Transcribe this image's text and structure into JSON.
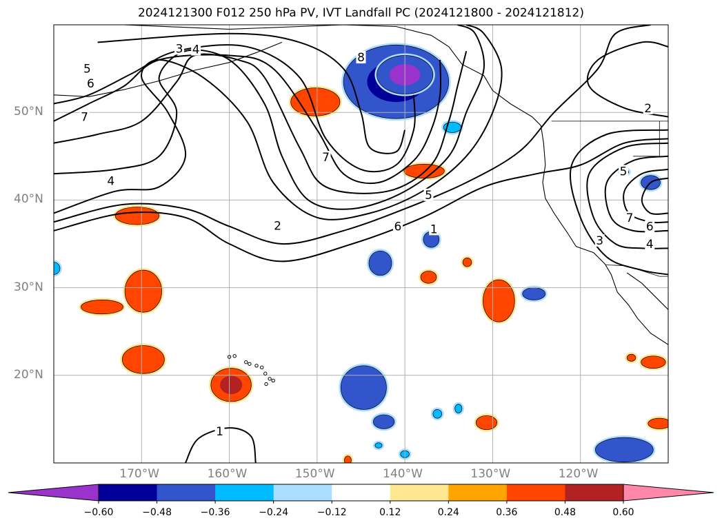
{
  "title": "2024121300 F012 250 hPa PV, IVT Landfall PC (2024121800 - 2024121812)",
  "map": {
    "lon_range": [
      -180,
      -110
    ],
    "lat_range": [
      10,
      60
    ],
    "lat_labels": [
      {
        "lat": 50,
        "text": "50°N"
      },
      {
        "lat": 40,
        "text": "40°N"
      },
      {
        "lat": 30,
        "text": "30°N"
      },
      {
        "lat": 20,
        "text": "20°N"
      }
    ],
    "lon_labels": [
      {
        "lon": -170,
        "text": "170°W"
      },
      {
        "lon": -160,
        "text": "160°W"
      },
      {
        "lon": -150,
        "text": "150°W"
      },
      {
        "lon": -140,
        "text": "140°W"
      },
      {
        "lon": -130,
        "text": "130°W"
      },
      {
        "lon": -120,
        "text": "120°W"
      }
    ],
    "gridlines": true,
    "contour_labels": [
      {
        "lon": -165.7,
        "lat": 57.3,
        "text": "3"
      },
      {
        "lon": -163.8,
        "lat": 57.2,
        "text": "4"
      },
      {
        "lon": -176.2,
        "lat": 55.0,
        "text": "5"
      },
      {
        "lon": -175.8,
        "lat": 53.3,
        "text": "6"
      },
      {
        "lon": -176.5,
        "lat": 49.5,
        "text": "7"
      },
      {
        "lon": -173.5,
        "lat": 42.2,
        "text": "4"
      },
      {
        "lon": -154.5,
        "lat": 37.1,
        "text": "2"
      },
      {
        "lon": -149.0,
        "lat": 44.9,
        "text": "7"
      },
      {
        "lon": -145.0,
        "lat": 56.3,
        "text": "8"
      },
      {
        "lon": -137.3,
        "lat": 40.6,
        "text": "5"
      },
      {
        "lon": -140.8,
        "lat": 37.0,
        "text": "6"
      },
      {
        "lon": -136.7,
        "lat": 36.7,
        "text": "1"
      },
      {
        "lon": -161.1,
        "lat": 13.6,
        "text": "1"
      },
      {
        "lon": -112.3,
        "lat": 50.5,
        "text": "2"
      },
      {
        "lon": -115.1,
        "lat": 43.3,
        "text": "5"
      },
      {
        "lon": -114.4,
        "lat": 38.0,
        "text": "7"
      },
      {
        "lon": -112.1,
        "lat": 37.0,
        "text": "6"
      },
      {
        "lon": -112.1,
        "lat": 35.0,
        "text": "4"
      },
      {
        "lon": -117.8,
        "lat": 35.4,
        "text": "3"
      }
    ]
  },
  "pv_contours": [
    {
      "level": "1",
      "points": [
        [
          -180,
          36.5
        ],
        [
          -172,
          38.5
        ],
        [
          -165,
          38
        ],
        [
          -160,
          35
        ],
        [
          -154,
          33
        ],
        [
          -146,
          35
        ],
        [
          -138,
          38
        ],
        [
          -131,
          41.5
        ],
        [
          -125,
          43
        ],
        [
          -120,
          44
        ],
        [
          -115,
          46.5
        ],
        [
          -110,
          47
        ]
      ]
    },
    {
      "level": "2",
      "points": [
        [
          -180,
          37.5
        ],
        [
          -172,
          39.5
        ],
        [
          -165,
          39
        ],
        [
          -160,
          37
        ],
        [
          -154,
          35
        ],
        [
          -147,
          36.5
        ],
        [
          -140,
          39
        ],
        [
          -133,
          42
        ],
        [
          -127,
          45.5
        ],
        [
          -123,
          50
        ],
        [
          -118,
          55
        ],
        [
          -116,
          59
        ],
        [
          -112,
          60
        ]
      ]
    },
    {
      "level": "3",
      "points": [
        [
          -180,
          38.5
        ],
        [
          -173,
          41
        ],
        [
          -168,
          41.5
        ],
        [
          -165,
          45
        ],
        [
          -167,
          50
        ],
        [
          -170,
          54
        ],
        [
          -168,
          56
        ],
        [
          -163,
          54
        ],
        [
          -158,
          49
        ],
        [
          -155,
          42
        ],
        [
          -150,
          38
        ],
        [
          -144,
          38.5
        ],
        [
          -138,
          41
        ],
        [
          -133,
          45
        ],
        [
          -130,
          50
        ],
        [
          -129,
          55
        ],
        [
          -131,
          59
        ],
        [
          -133,
          60
        ]
      ]
    },
    {
      "level": "4",
      "points": [
        [
          -180,
          43
        ],
        [
          -173,
          43.5
        ],
        [
          -168,
          45
        ],
        [
          -166,
          50
        ],
        [
          -168,
          54
        ],
        [
          -165,
          57
        ],
        [
          -160,
          56
        ],
        [
          -156,
          51
        ],
        [
          -154,
          45
        ],
        [
          -151,
          40
        ],
        [
          -146,
          39
        ],
        [
          -140,
          41
        ],
        [
          -135,
          45
        ],
        [
          -133,
          50
        ],
        [
          -131,
          55
        ],
        [
          -132,
          59
        ],
        [
          -134,
          60
        ]
      ]
    },
    {
      "level": "5",
      "points": [
        [
          -180,
          46.5
        ],
        [
          -175,
          47.5
        ],
        [
          -170,
          49
        ],
        [
          -166,
          53.5
        ],
        [
          -164,
          56.5
        ],
        [
          -159,
          56
        ],
        [
          -156,
          54
        ],
        [
          -152,
          46
        ],
        [
          -149,
          41.5
        ],
        [
          -142,
          41
        ],
        [
          -137,
          44
        ],
        [
          -135,
          49
        ],
        [
          -134,
          53
        ],
        [
          -133,
          57
        ]
      ]
    },
    {
      "level": "6",
      "points": [
        [
          -180,
          49
        ],
        [
          -176,
          51
        ],
        [
          -172,
          53
        ],
        [
          -168,
          56
        ],
        [
          -160,
          56.5
        ],
        [
          -155,
          55
        ],
        [
          -150,
          48
        ],
        [
          -147,
          43
        ],
        [
          -143,
          42
        ],
        [
          -139,
          44.5
        ],
        [
          -137,
          48
        ],
        [
          -136,
          52
        ],
        [
          -136,
          56
        ]
      ]
    },
    {
      "level": "7",
      "points": [
        [
          -180,
          51
        ],
        [
          -176,
          52
        ],
        [
          -171,
          54.5
        ],
        [
          -166,
          57
        ],
        [
          -158,
          57.5
        ],
        [
          -152,
          54
        ],
        [
          -149,
          47
        ],
        [
          -145,
          43.5
        ],
        [
          -141,
          44
        ],
        [
          -139,
          48
        ],
        [
          -139,
          52
        ]
      ]
    },
    {
      "level": "8",
      "points": [
        [
          -175,
          58
        ],
        [
          -160,
          59
        ],
        [
          -152,
          58
        ],
        [
          -147,
          55
        ],
        [
          -145,
          50
        ],
        [
          -144,
          46
        ],
        [
          -141,
          45.5
        ],
        [
          -140,
          48
        ]
      ]
    },
    {
      "level": "2",
      "points": [
        [
          -110,
          57.5
        ],
        [
          -113,
          58
        ],
        [
          -118,
          56
        ],
        [
          -119,
          53
        ],
        [
          -115,
          50.5
        ],
        [
          -110,
          49.5
        ]
      ]
    },
    {
      "level": "3",
      "points": [
        [
          -110,
          48
        ],
        [
          -117,
          47.5
        ],
        [
          -121,
          44
        ],
        [
          -120,
          38
        ],
        [
          -117,
          33.5
        ],
        [
          -113,
          32
        ],
        [
          -110,
          31.5
        ]
      ]
    },
    {
      "level": "4",
      "points": [
        [
          -110,
          46.5
        ],
        [
          -115,
          46
        ],
        [
          -119,
          43
        ],
        [
          -118.5,
          38
        ],
        [
          -116,
          35
        ],
        [
          -113,
          34.5
        ],
        [
          -110,
          34.5
        ]
      ]
    },
    {
      "level": "5",
      "points": [
        [
          -110,
          45
        ],
        [
          -114,
          44.5
        ],
        [
          -117,
          42
        ],
        [
          -116.5,
          38
        ],
        [
          -114,
          36.5
        ],
        [
          -110,
          36.5
        ]
      ]
    },
    {
      "level": "6",
      "points": [
        [
          -110,
          43.5
        ],
        [
          -113,
          43
        ],
        [
          -115,
          41
        ],
        [
          -114.5,
          38.5
        ],
        [
          -112,
          37.5
        ],
        [
          -110,
          37.5
        ]
      ]
    },
    {
      "level": "7",
      "points": [
        [
          -110,
          42.5
        ],
        [
          -112,
          42
        ],
        [
          -113,
          40
        ],
        [
          -112,
          38.5
        ],
        [
          -110,
          38.5
        ]
      ]
    },
    {
      "level": "1",
      "points": [
        [
          -165,
          10
        ],
        [
          -163.5,
          12.8
        ],
        [
          -160,
          14
        ],
        [
          -157.5,
          13
        ],
        [
          -157,
          10
        ]
      ]
    }
  ],
  "coastline": {
    "north_america": [
      [
        -172,
        60
      ],
      [
        -160,
        59.5
      ],
      [
        -152,
        59.8
      ],
      [
        -147,
        60
      ],
      [
        -141,
        59.8
      ],
      [
        -137,
        58.8
      ],
      [
        -135,
        57.5
      ],
      [
        -133.5,
        55.5
      ],
      [
        -131,
        54.2
      ],
      [
        -130,
        52.5
      ],
      [
        -128,
        51
      ],
      [
        -125.5,
        49.5
      ],
      [
        -124.5,
        48.5
      ],
      [
        -124.2,
        46.5
      ],
      [
        -124,
        44
      ],
      [
        -124.3,
        42
      ],
      [
        -124,
        40.2
      ],
      [
        -123,
        38.5
      ],
      [
        -122.2,
        37.3
      ],
      [
        -121.5,
        36.3
      ],
      [
        -120.5,
        34.7
      ],
      [
        -118.5,
        34
      ],
      [
        -117.2,
        32.7
      ],
      [
        -116.5,
        31.5
      ],
      [
        -115.8,
        29.5
      ],
      [
        -114.5,
        28
      ],
      [
        -113.5,
        26.5
      ],
      [
        -112,
        24.8
      ],
      [
        -110,
        23.5
      ]
    ],
    "gulf_of_california": [
      [
        -110,
        27.5
      ],
      [
        -111.5,
        29
      ],
      [
        -113,
        30.5
      ],
      [
        -114.7,
        31.7
      ]
    ],
    "alaska_peninsula": [
      [
        -180,
        52
      ],
      [
        -176,
        51.8
      ],
      [
        -172,
        52.6
      ],
      [
        -168,
        53.6
      ],
      [
        -164,
        54.8
      ],
      [
        -160,
        55.7
      ],
      [
        -157,
        56.8
      ],
      [
        -154,
        58
      ]
    ],
    "hawaii": [
      [
        -160,
        22.1
      ],
      [
        -159.4,
        22.2
      ],
      [
        -158.1,
        21.5
      ],
      [
        -157.7,
        21.3
      ],
      [
        -156.9,
        21.1
      ],
      [
        -156.3,
        20.9
      ],
      [
        -155.9,
        20.2
      ],
      [
        -155.4,
        19.6
      ],
      [
        -155,
        19.4
      ],
      [
        -155.8,
        19
      ]
    ],
    "borders": [
      [
        [
          -123.3,
          49
        ],
        [
          -110,
          49
        ]
      ],
      [
        [
          -117.1,
          32.6
        ],
        [
          -114.8,
          32.5
        ],
        [
          -111,
          31.3
        ],
        [
          -110,
          31.3
        ]
      ],
      [
        [
          -111,
          49
        ],
        [
          -111,
          45
        ],
        [
          -114,
          45
        ]
      ]
    ]
  },
  "ivt_regions": [
    {
      "lon": -141,
      "lat": 53.5,
      "rx": 6.0,
      "ry": 4.2,
      "value": -0.5
    },
    {
      "lon": -140,
      "lat": 54.3,
      "rx": 3.2,
      "ry": 2.2,
      "value": -0.62
    },
    {
      "lon": -150.2,
      "lat": 51.2,
      "rx": 2.8,
      "ry": 1.6,
      "value": 0.45
    },
    {
      "lon": -137.8,
      "lat": 43.3,
      "rx": 2.3,
      "ry": 0.8,
      "value": 0.4
    },
    {
      "lon": -134.6,
      "lat": 48.3,
      "rx": 1.0,
      "ry": 0.6,
      "value": -0.3
    },
    {
      "lon": -170.5,
      "lat": 38.2,
      "rx": 2.5,
      "ry": 1.0,
      "value": 0.4
    },
    {
      "lon": -169.8,
      "lat": 29.6,
      "rx": 2.1,
      "ry": 2.4,
      "value": 0.46
    },
    {
      "lon": -174.5,
      "lat": 27.8,
      "rx": 2.4,
      "ry": 0.8,
      "value": 0.4
    },
    {
      "lon": -169.8,
      "lat": 21.8,
      "rx": 2.4,
      "ry": 1.6,
      "value": 0.46
    },
    {
      "lon": -159.8,
      "lat": 18.9,
      "rx": 2.3,
      "ry": 1.9,
      "value": 0.48
    },
    {
      "lon": -142.8,
      "lat": 32.8,
      "rx": 1.3,
      "ry": 1.4,
      "value": -0.38
    },
    {
      "lon": -137.0,
      "lat": 35.5,
      "rx": 0.9,
      "ry": 0.9,
      "value": -0.38
    },
    {
      "lon": -137.3,
      "lat": 31.2,
      "rx": 0.9,
      "ry": 0.7,
      "value": 0.4
    },
    {
      "lon": -132.9,
      "lat": 32.9,
      "rx": 0.5,
      "ry": 0.5,
      "value": 0.4
    },
    {
      "lon": -129.3,
      "lat": 28.5,
      "rx": 1.8,
      "ry": 2.4,
      "value": 0.46
    },
    {
      "lon": -125.3,
      "lat": 29.3,
      "rx": 1.3,
      "ry": 0.7,
      "value": -0.38
    },
    {
      "lon": -144.7,
      "lat": 18.6,
      "rx": 2.6,
      "ry": 2.5,
      "value": -0.45
    },
    {
      "lon": -142.4,
      "lat": 14.7,
      "rx": 1.2,
      "ry": 0.8,
      "value": -0.38
    },
    {
      "lon": -130.7,
      "lat": 14.6,
      "rx": 1.2,
      "ry": 0.8,
      "value": 0.4
    },
    {
      "lon": -115.0,
      "lat": 11.5,
      "rx": 3.3,
      "ry": 1.4,
      "value": -0.45
    },
    {
      "lon": -114.2,
      "lat": 22.0,
      "rx": 0.5,
      "ry": 0.4,
      "value": 0.4
    },
    {
      "lon": -111.7,
      "lat": 21.5,
      "rx": 1.4,
      "ry": 0.7,
      "value": 0.4
    },
    {
      "lon": -111.0,
      "lat": 14.5,
      "rx": 1.3,
      "ry": 0.6,
      "value": 0.4
    },
    {
      "lon": -112.0,
      "lat": 42.0,
      "rx": 1.1,
      "ry": 0.8,
      "value": -0.38
    },
    {
      "lon": -115.0,
      "lat": 43.2,
      "rx": 0.5,
      "ry": 0.3,
      "value": -0.3
    },
    {
      "lon": -180.0,
      "lat": 32.2,
      "rx": 0.7,
      "ry": 0.7,
      "value": -0.3
    },
    {
      "lon": -136.3,
      "lat": 15.6,
      "rx": 0.5,
      "ry": 0.5,
      "value": -0.3
    },
    {
      "lon": -133.9,
      "lat": 16.2,
      "rx": 0.4,
      "ry": 0.5,
      "value": -0.3
    },
    {
      "lon": -143.0,
      "lat": 12.0,
      "rx": 0.4,
      "ry": 0.3,
      "value": -0.3
    },
    {
      "lon": -140.0,
      "lat": 11.0,
      "rx": 0.5,
      "ry": 0.4,
      "value": -0.3
    },
    {
      "lon": -146.5,
      "lat": 10.3,
      "rx": 0.4,
      "ry": 0.5,
      "value": 0.4
    }
  ],
  "colorbar": {
    "levels": [
      -0.6,
      -0.48,
      -0.36,
      -0.24,
      -0.12,
      0.12,
      0.24,
      0.36,
      0.48,
      0.6
    ],
    "tick_labels": [
      "−0.60",
      "−0.48",
      "−0.36",
      "−0.24",
      "−0.12",
      "0.12",
      "0.24",
      "0.36",
      "0.48",
      "0.60"
    ],
    "colors": [
      "#9933cc",
      "#000099",
      "#3355cc",
      "#00bbff",
      "#aaddff",
      "#ffffff",
      "#ffe690",
      "#ffa500",
      "#ff4500",
      "#b22222",
      "#ff88aa"
    ],
    "extend": "both"
  }
}
